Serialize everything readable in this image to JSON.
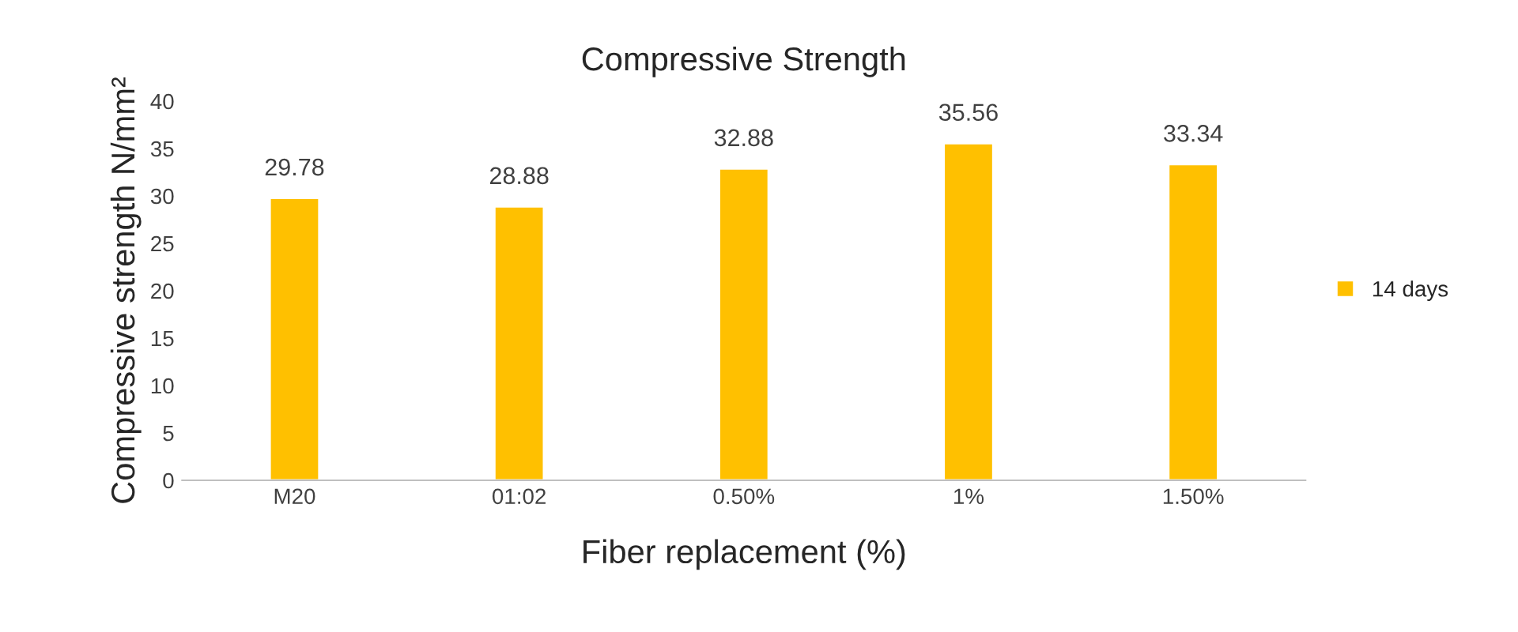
{
  "chart_data": {
    "type": "bar",
    "title": "Compressive Strength",
    "xlabel": "Fiber replacement (%)",
    "ylabel": "Compressive strength N/mm²",
    "categories": [
      "M20",
      "01:02",
      "0.50%",
      "1%",
      "1.50%"
    ],
    "series": [
      {
        "name": "14 days",
        "color": "#ffc000",
        "values": [
          29.78,
          28.88,
          32.88,
          35.56,
          33.34
        ]
      }
    ],
    "ylim": [
      0,
      40
    ],
    "yticks": [
      0,
      5,
      10,
      15,
      20,
      25,
      30,
      35,
      40
    ],
    "data_labels": true,
    "grid": false,
    "legend": "right"
  }
}
